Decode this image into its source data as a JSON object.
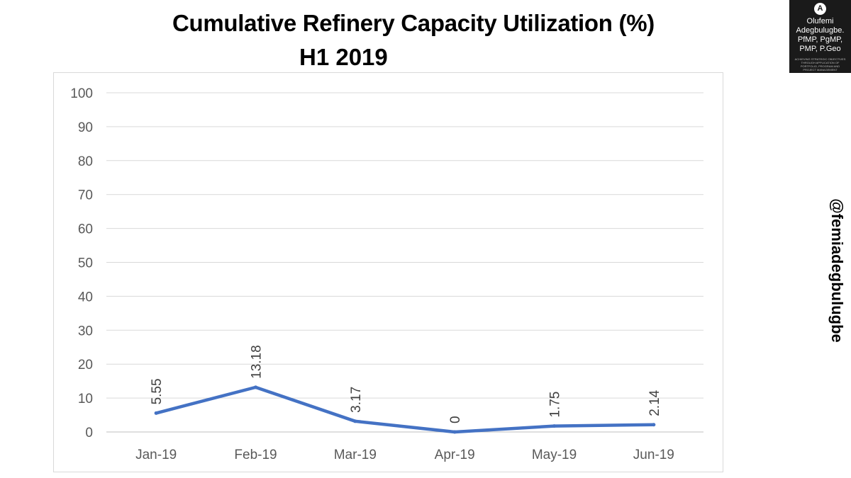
{
  "chart_data": {
    "type": "line",
    "title": "Cumulative Refinery Capacity Utilization (%)",
    "subtitle": "H1 2019",
    "categories": [
      "Jan-19",
      "Feb-19",
      "Mar-19",
      "Apr-19",
      "May-19",
      "Jun-19"
    ],
    "series": [
      {
        "values": [
          5.55,
          13.18,
          3.17,
          0,
          1.75,
          2.14
        ],
        "labels": [
          "5.55",
          "13.18",
          "3.17",
          "0",
          "1.75",
          "2.14"
        ]
      }
    ],
    "ylim": [
      0,
      100
    ],
    "yticks": [
      "0",
      "10",
      "20",
      "30",
      "40",
      "50",
      "60",
      "70",
      "80",
      "90",
      "100"
    ],
    "grid": true,
    "legend": "none",
    "line_color": "#4472c4",
    "xlabel": "",
    "ylabel": ""
  },
  "logo": {
    "mark": "A",
    "lines": [
      "Olufemi",
      "Adegbulugbe.",
      "PfMP, PgMP,",
      "PMP, P.Geo"
    ],
    "tagline": "ACHIEVING STRATEGIC OBJECTIVES THROUGH APPLICATION OF PORTFOLIO, PROGRAM AND PROJECT MANAGEMENT"
  },
  "handle": "@femiadegbulugbe"
}
